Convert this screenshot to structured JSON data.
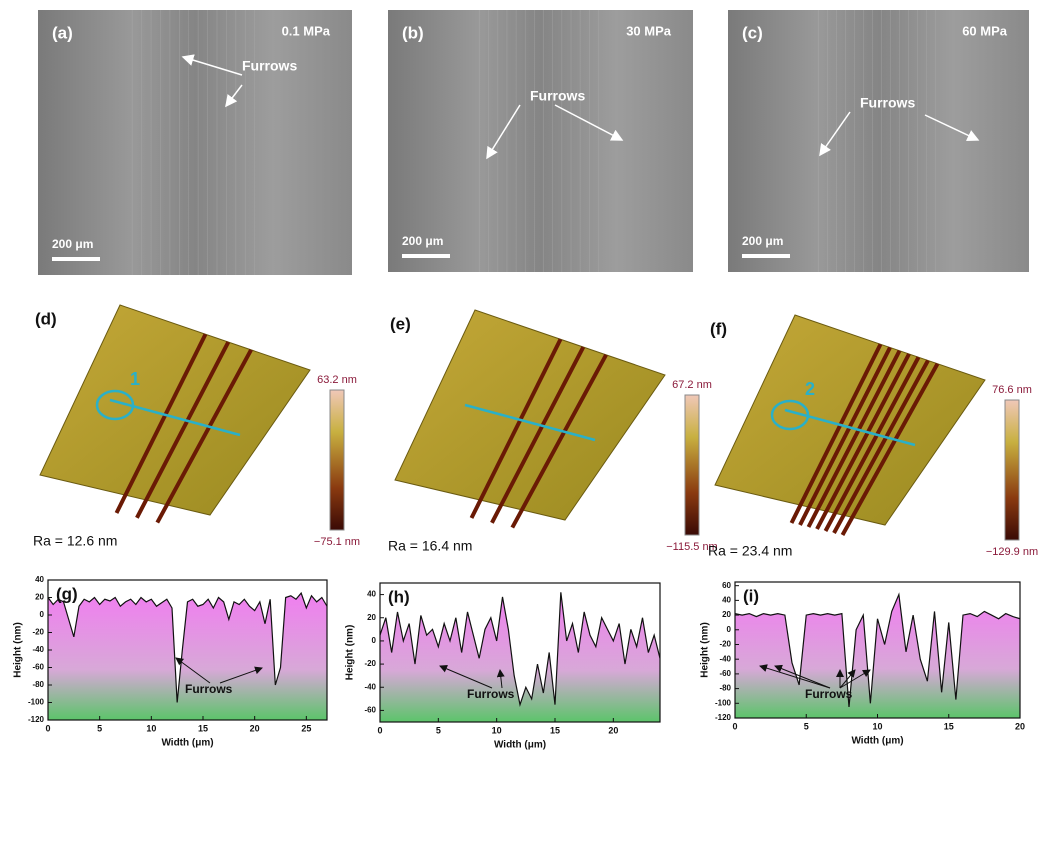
{
  "panels": {
    "sem": [
      {
        "label": "(a)",
        "pressure": "0.1 MPa",
        "annotation": "Furrows",
        "scale_bar": "200 μm"
      },
      {
        "label": "(b)",
        "pressure": "30 MPa",
        "annotation": "Furrows",
        "scale_bar": "200 μm"
      },
      {
        "label": "(c)",
        "pressure": "60 MPa",
        "annotation": "Furrows",
        "scale_bar": "200 μm"
      }
    ],
    "afm": [
      {
        "label": "(d)",
        "max": "63.2 nm",
        "min": "−75.1 nm",
        "roughness": "Ra = 12.6 nm",
        "marker": "1"
      },
      {
        "label": "(e)",
        "max": "67.2 nm",
        "min": "−115.5 nm",
        "roughness": "Ra = 16.4 nm"
      },
      {
        "label": "(f)",
        "max": "76.6 nm",
        "min": "−129.9 nm",
        "roughness": "Ra = 23.4 nm",
        "marker": "2"
      }
    ]
  },
  "chart_data": [
    {
      "type": "line",
      "title": "(g)",
      "x_label": "Width (μm)",
      "y_label": "Height (nm)",
      "annotation": "Furrows",
      "x": [
        0,
        0.5,
        1,
        1.5,
        2,
        2.5,
        3,
        3.5,
        4,
        4.5,
        5,
        5.5,
        6,
        6.5,
        7,
        7.5,
        8,
        8.5,
        9,
        9.5,
        10,
        10.5,
        11,
        11.5,
        12,
        12.5,
        13,
        13.5,
        14,
        14.5,
        15,
        15.5,
        16,
        16.5,
        17,
        17.5,
        18,
        18.5,
        19,
        19.5,
        20,
        20.5,
        21,
        21.5,
        22,
        22.5,
        23,
        23.5,
        24,
        24.5,
        25,
        25.5,
        26,
        26.5,
        27
      ],
      "values": [
        20,
        12,
        18,
        15,
        -5,
        -25,
        10,
        18,
        15,
        20,
        12,
        18,
        16,
        20,
        10,
        15,
        18,
        12,
        20,
        15,
        18,
        10,
        14,
        18,
        8,
        -100,
        -40,
        15,
        18,
        10,
        12,
        18,
        8,
        20,
        15,
        -5,
        15,
        12,
        18,
        10,
        5,
        15,
        -10,
        18,
        -80,
        -60,
        20,
        22,
        18,
        25,
        8,
        22,
        15,
        20,
        10
      ],
      "color": "#111111",
      "xlim": [
        0,
        27
      ],
      "xticks": [
        0,
        5,
        10,
        15,
        20,
        25
      ],
      "ylim": [
        -120,
        40
      ],
      "yticks": [
        -120,
        -100,
        -80,
        -60,
        -40,
        -20,
        0,
        20,
        40
      ]
    },
    {
      "type": "line",
      "title": "(h)",
      "x_label": "Width (μm)",
      "y_label": "Height (nm)",
      "annotation": "Furrows",
      "x": [
        0,
        0.5,
        1,
        1.5,
        2,
        2.5,
        3,
        3.5,
        4,
        4.5,
        5,
        5.5,
        6,
        6.5,
        7,
        7.5,
        8,
        8.5,
        9,
        9.5,
        10,
        10.5,
        11,
        11.5,
        12,
        12.5,
        13,
        13.5,
        14,
        14.5,
        15,
        15.5,
        16,
        16.5,
        17,
        17.5,
        18,
        18.5,
        19,
        19.5,
        20,
        20.5,
        21,
        21.5,
        22,
        22.5,
        23,
        23.5,
        24
      ],
      "values": [
        5,
        20,
        -10,
        25,
        0,
        15,
        -20,
        22,
        5,
        10,
        -5,
        15,
        0,
        20,
        -10,
        25,
        5,
        -15,
        10,
        20,
        0,
        38,
        10,
        -30,
        -55,
        -40,
        -50,
        -20,
        -45,
        -10,
        -55,
        42,
        0,
        15,
        -10,
        25,
        5,
        -5,
        20,
        10,
        0,
        15,
        -20,
        10,
        -5,
        20,
        -10,
        5,
        -15
      ],
      "color": "#111111",
      "xlim": [
        0,
        24
      ],
      "xticks": [
        0,
        5,
        10,
        15,
        20
      ],
      "ylim": [
        -70,
        50
      ],
      "yticks": [
        -60,
        -40,
        -20,
        0,
        20,
        40
      ]
    },
    {
      "type": "line",
      "title": "(i)",
      "x_label": "Width (μm)",
      "y_label": "Height (nm)",
      "annotation": "Furrows",
      "x": [
        0,
        0.5,
        1,
        1.5,
        2,
        2.5,
        3,
        3.5,
        4,
        4.5,
        5,
        5.5,
        6,
        6.5,
        7,
        7.5,
        8,
        8.5,
        9,
        9.5,
        10,
        10.5,
        11,
        11.5,
        12,
        12.5,
        13,
        13.5,
        14,
        14.5,
        15,
        15.5,
        16,
        16.5,
        17,
        17.5,
        18,
        18.5,
        19,
        19.5,
        20
      ],
      "values": [
        22,
        20,
        22,
        18,
        22,
        20,
        22,
        20,
        -45,
        -75,
        20,
        22,
        20,
        22,
        20,
        22,
        -105,
        0,
        20,
        -100,
        15,
        -20,
        25,
        48,
        -30,
        20,
        -40,
        -70,
        25,
        -85,
        10,
        -95,
        20,
        22,
        18,
        25,
        20,
        15,
        22,
        18,
        15
      ],
      "color": "#111111",
      "xlim": [
        0,
        20
      ],
      "xticks": [
        0,
        5,
        10,
        15,
        20
      ],
      "ylim": [
        -120,
        65
      ],
      "yticks": [
        -120,
        -100,
        -80,
        -60,
        -40,
        -20,
        0,
        20,
        40,
        60
      ]
    }
  ]
}
